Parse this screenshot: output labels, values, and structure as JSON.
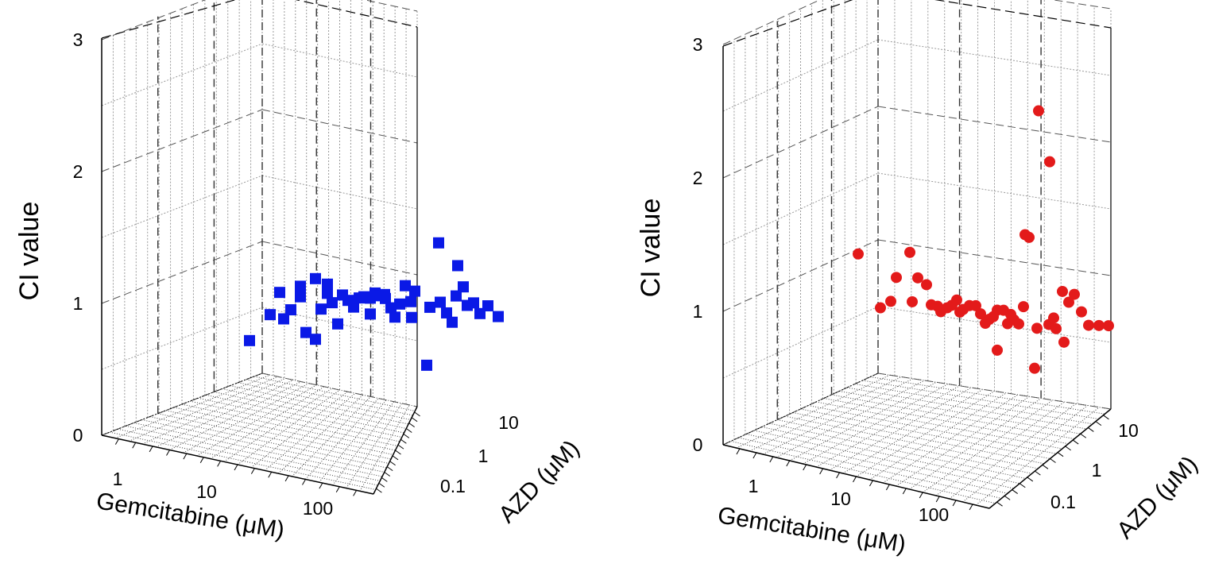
{
  "chart_data": [
    {
      "type": "scatter",
      "marker": "square",
      "color": "#0a19e6",
      "zlabel": "CI value",
      "xlabel": "Gemcitabine (μM)",
      "ylabel": "AZD (μM)",
      "z_ticks": [
        "0",
        "1",
        "2",
        "3"
      ],
      "x_ticks": [
        "1",
        "10",
        "100"
      ],
      "y_ticks": [
        "0.1",
        "1",
        "10"
      ],
      "zlim": [
        0,
        3
      ],
      "grid": true,
      "values": [
        0.68,
        0.88,
        1.05,
        0.85,
        0.92,
        1.1,
        1.02,
        0.75,
        0.7,
        1.16,
        0.93,
        1.05,
        1.12,
        0.98,
        0.82,
        1.04,
        1.0,
        0.95,
        1.02,
        1.03,
        0.9,
        1.02,
        1.06,
        1.04,
        1.05,
        1.02,
        0.95,
        0.88,
        0.98,
        1.12,
        1.0,
        0.88,
        1.08,
        0.52,
        0.96,
        1.45,
        1.0,
        0.92,
        0.85,
        1.05,
        1.28,
        1.12,
        0.98,
        1.0,
        0.92,
        0.98,
        0.9
      ]
    },
    {
      "type": "scatter",
      "marker": "circle",
      "color": "#e31a1a",
      "zlabel": "CI value",
      "xlabel": "Gemcitabine (μM)",
      "ylabel": "AZD (μM)",
      "z_ticks": [
        "0",
        "1",
        "2",
        "3"
      ],
      "x_ticks": [
        "1",
        "10",
        "100"
      ],
      "y_ticks": [
        "0.1",
        "1",
        "10"
      ],
      "zlim": [
        0,
        3
      ],
      "grid": true,
      "values": [
        1.45,
        1.05,
        1.1,
        1.28,
        1.47,
        1.1,
        1.28,
        1.23,
        1.08,
        1.07,
        1.03,
        1.06,
        1.08,
        1.12,
        1.03,
        1.05,
        1.08,
        1.08,
        1.02,
        0.95,
        0.98,
        1.0,
        1.05,
        0.75,
        1.05,
        0.95,
        1.02,
        1.6,
        0.98,
        0.95,
        1.08,
        1.62,
        0.92,
        2.55,
        0.62,
        2.17,
        0.95,
        1.0,
        0.92,
        1.2,
        0.82,
        1.12,
        1.18,
        1.05,
        0.95,
        0.95,
        0.95
      ]
    }
  ]
}
